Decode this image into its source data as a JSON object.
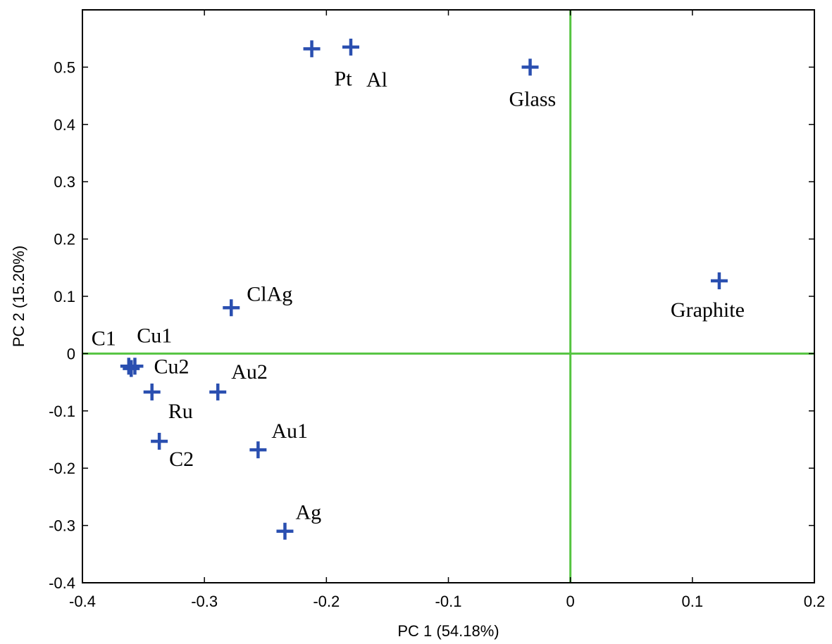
{
  "chart_data": {
    "type": "scatter",
    "title": "",
    "xlabel": "PC 1 (54.18%)",
    "ylabel": "PC 2 (15.20%)",
    "xlim": [
      -0.4,
      0.2
    ],
    "ylim": [
      -0.4,
      0.6
    ],
    "xticks": [
      -0.4,
      -0.3,
      -0.2,
      -0.1,
      0,
      0.1,
      0.2
    ],
    "xtick_labels": [
      "-0.4",
      "-0.3",
      "-0.2",
      "-0.1",
      "0",
      "0.1",
      "0.2"
    ],
    "yticks": [
      -0.4,
      -0.3,
      -0.2,
      -0.1,
      0,
      0.1,
      0.2,
      0.3,
      0.4,
      0.5
    ],
    "ytick_labels": [
      "-0.4",
      "-0.3",
      "-0.2",
      "-0.1",
      "0",
      "0.1",
      "0.2",
      "0.3",
      "0.4",
      "0.5"
    ],
    "grid": false,
    "marker": "plus",
    "marker_color": "#2a4fb0",
    "reference_line_color": "#55c441",
    "reference_lines": {
      "x": 0,
      "y": 0
    },
    "points": [
      {
        "label": "Pt",
        "x": -0.212,
        "y": 0.532
      },
      {
        "label": "Al",
        "x": -0.18,
        "y": 0.535
      },
      {
        "label": "Glass",
        "x": -0.033,
        "y": 0.5
      },
      {
        "label": "Graphite",
        "x": 0.122,
        "y": 0.127
      },
      {
        "label": "ClAg",
        "x": -0.278,
        "y": 0.08
      },
      {
        "label": "C1",
        "x": -0.362,
        "y": -0.022
      },
      {
        "label": "Cu1",
        "x": -0.36,
        "y": -0.026
      },
      {
        "label": "Cu2",
        "x": -0.357,
        "y": -0.022
      },
      {
        "label": "Ru",
        "x": -0.343,
        "y": -0.067
      },
      {
        "label": "Au2",
        "x": -0.289,
        "y": -0.067
      },
      {
        "label": "C2",
        "x": -0.337,
        "y": -0.153
      },
      {
        "label": "Au1",
        "x": -0.256,
        "y": -0.168
      },
      {
        "label": "Ag",
        "x": -0.234,
        "y": -0.31
      }
    ]
  }
}
